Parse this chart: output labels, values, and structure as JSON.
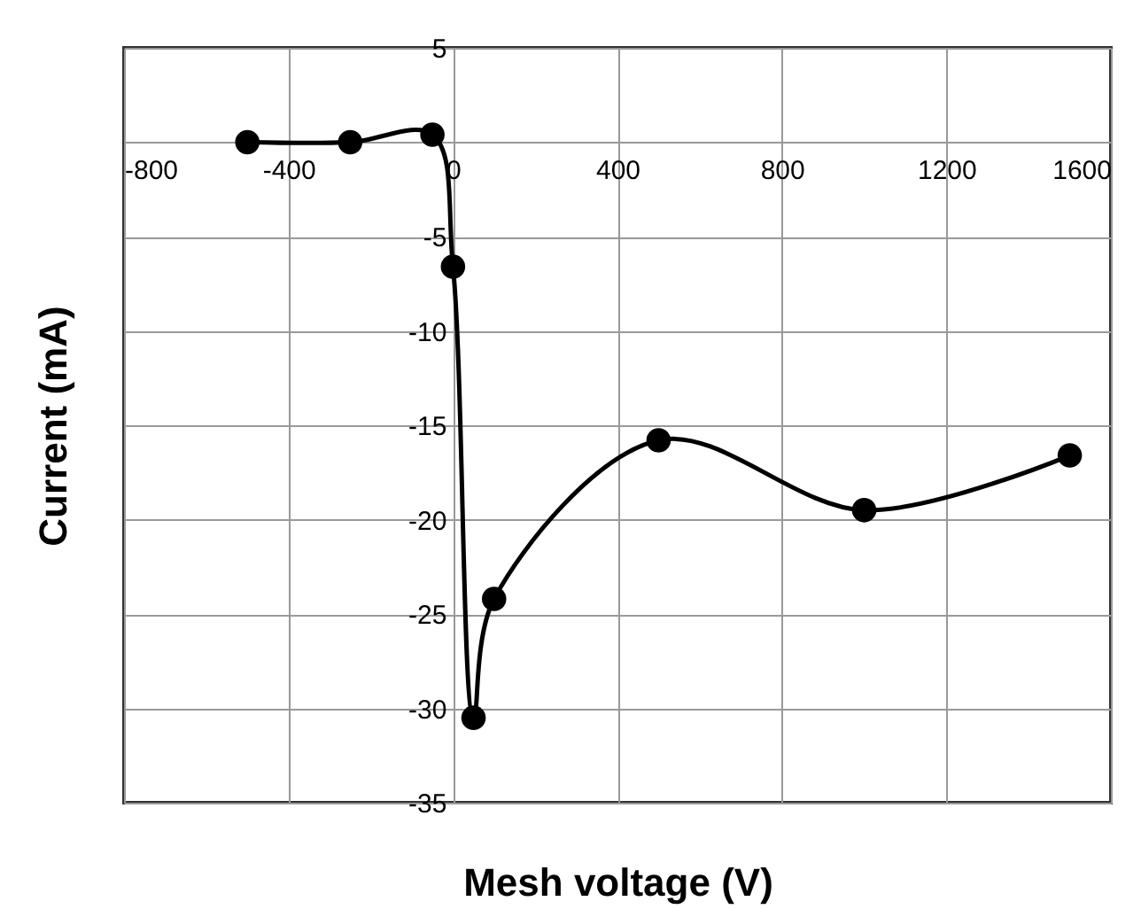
{
  "chart_data": {
    "type": "line",
    "xlabel": "Mesh voltage (V)",
    "ylabel": "Current (mA)",
    "x": [
      -500,
      -250,
      -50,
      0,
      50,
      100,
      500,
      1000,
      1500
    ],
    "series": [
      {
        "color": "#000000",
        "values": [
          0,
          0,
          0.4,
          -6.6,
          -30.5,
          -24.2,
          -15.8,
          -19.5,
          -16.6
        ]
      }
    ],
    "xlim": [
      -800,
      1600
    ],
    "xticks": [
      -800,
      -400,
      0,
      400,
      800,
      1200,
      1600
    ],
    "ylim": [
      -35,
      5
    ],
    "yticks": [
      5,
      {
        "value": 0,
        "label": null
      },
      -5,
      -10,
      -15,
      -20,
      -25,
      -30,
      -35
    ],
    "grid": true,
    "marker": "circle",
    "line_style": "solid"
  }
}
